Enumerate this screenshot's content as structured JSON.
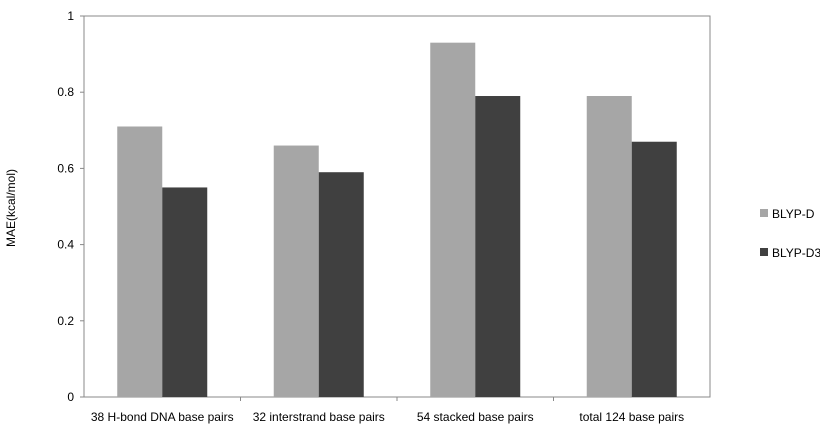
{
  "chart_data": {
    "type": "bar",
    "title": "",
    "xlabel": "",
    "ylabel": "MAE(kcal/mol)",
    "ylim": [
      0,
      1
    ],
    "yticks": [
      0,
      0.2,
      0.4,
      0.6,
      0.8,
      1
    ],
    "ytick_labels": [
      "0",
      "0.2",
      "0.4",
      "0.6",
      "0.8",
      "1"
    ],
    "grid": false,
    "legend_position": "right",
    "categories": [
      "38 H-bond DNA base pairs",
      "32 interstrand base pairs",
      "54 stacked base pairs",
      "total 124 base pairs"
    ],
    "series": [
      {
        "name": "BLYP-D",
        "color": "#a6a6a6",
        "values": [
          0.71,
          0.66,
          0.93,
          0.79
        ]
      },
      {
        "name": "BLYP-D3",
        "color": "#404040",
        "values": [
          0.55,
          0.59,
          0.79,
          0.67
        ]
      }
    ]
  }
}
